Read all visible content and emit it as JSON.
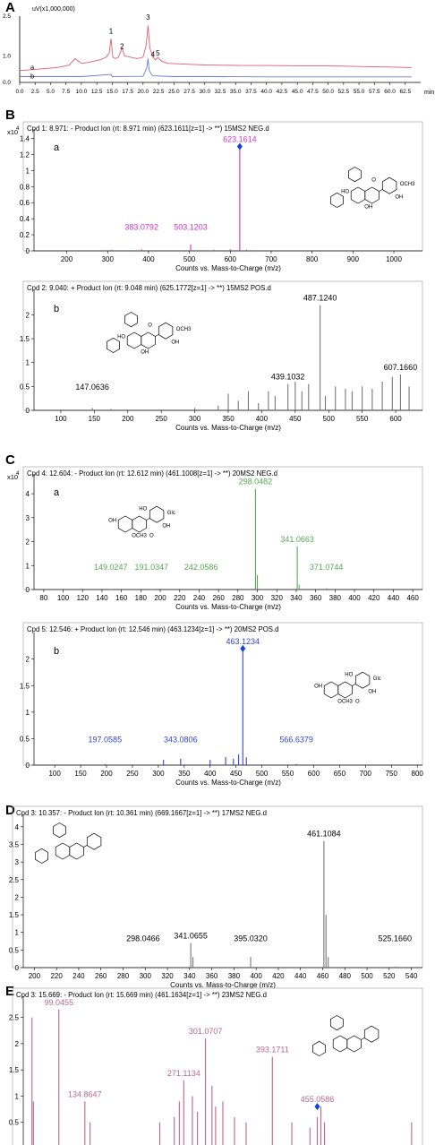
{
  "panel_letters": [
    "A",
    "B",
    "C",
    "D",
    "E"
  ],
  "chart_data": [
    {
      "id": "A",
      "type": "line",
      "ylabel": "uV(x1,000,000)",
      "xlabel": "min",
      "xlim": [
        0,
        65
      ],
      "ylim": [
        0,
        2.5
      ],
      "xticks": [
        0,
        2.5,
        5,
        7.5,
        10,
        12.5,
        15,
        17.5,
        20,
        22.5,
        25,
        27.5,
        30,
        32.5,
        35,
        37.5,
        40,
        42.5,
        45,
        47.5,
        50,
        52.5,
        55,
        57.5,
        60,
        62.5
      ],
      "xtick_labels": [
        "0.0",
        "2.5",
        "5.0",
        "7.5",
        "10.0",
        "12.5",
        "15.0",
        "17.5",
        "20.0",
        "22.5",
        "25.0",
        "27.5",
        "30.0",
        "32.5",
        "35.0",
        "37.5",
        "40.0",
        "42.5",
        "45.0",
        "47.5",
        "50.0",
        "52.5",
        "55.0",
        "57.5",
        "60.0",
        "62.5"
      ],
      "yticks": [
        0.0,
        1.0,
        2.5
      ],
      "ytick_labels": [
        "0.0",
        "1.0",
        "2.5"
      ],
      "trace_labels": [
        "a",
        "b"
      ],
      "peak_labels": [
        {
          "label": "1",
          "x": 14.8,
          "y": 1.78
        },
        {
          "label": "2",
          "x": 16.6,
          "y": 1.2
        },
        {
          "label": "3",
          "x": 20.8,
          "y": 2.3
        },
        {
          "label": "4",
          "x": 21.6,
          "y": 0.9
        },
        {
          "label": "5",
          "x": 22.4,
          "y": 0.95
        }
      ],
      "series": [
        {
          "color": "#e06070",
          "x": [
            0,
            2,
            4,
            6,
            8,
            9,
            10,
            11,
            12,
            13,
            14,
            14.5,
            14.8,
            15.1,
            15.5,
            16,
            16.6,
            17,
            18,
            19,
            20,
            20.5,
            20.8,
            21.1,
            21.6,
            22,
            22.4,
            23,
            24,
            26,
            28,
            30,
            33,
            36,
            40,
            45,
            50,
            55,
            60,
            63.5
          ],
          "y": [
            0.45,
            0.48,
            0.52,
            0.56,
            0.65,
            0.9,
            0.72,
            0.75,
            0.8,
            0.85,
            0.95,
            1.1,
            1.65,
            0.95,
            0.9,
            0.95,
            1.3,
            1.0,
            0.95,
            0.9,
            0.95,
            1.4,
            2.15,
            1.3,
            0.95,
            0.85,
            0.95,
            0.8,
            0.72,
            0.7,
            0.68,
            0.66,
            0.65,
            0.64,
            0.64,
            0.63,
            0.62,
            0.6,
            0.58,
            0.56
          ]
        },
        {
          "color": "#6a7ad6",
          "x": [
            0,
            5,
            10,
            14.8,
            15,
            20,
            20.6,
            20.8,
            21,
            21.5,
            25,
            30,
            40,
            50,
            60,
            63.5
          ],
          "y": [
            0.22,
            0.22,
            0.22,
            0.3,
            0.22,
            0.23,
            0.55,
            0.9,
            0.45,
            0.25,
            0.22,
            0.22,
            0.21,
            0.21,
            0.21,
            0.21
          ]
        }
      ]
    },
    {
      "id": "B-a",
      "type": "bar",
      "title": "Cpd 1: 8.971: - Product Ion (rt: 8.971 min) (623.1611[z=1] -> **) 15MS2 NEG.d",
      "multiplier": "x10",
      "exponent": "4",
      "label": "a",
      "xlabel": "Counts vs. Mass-to-Charge (m/z)",
      "xlim": [
        120,
        1070
      ],
      "ylim": [
        0,
        1.45
      ],
      "xticks": [
        200,
        300,
        400,
        500,
        600,
        700,
        800,
        900,
        1000
      ],
      "yticks": [
        0,
        0.2,
        0.4,
        0.6,
        0.8,
        1,
        1.2,
        1.4
      ],
      "ytick_labels": [
        "0",
        "0.2",
        "0.4",
        "0.6",
        "0.8",
        "1",
        "1.2",
        "1.4"
      ],
      "bar_color": "#cc33cc",
      "marker": {
        "x": 623.1614,
        "y": 1.3
      },
      "x": [
        383.0792,
        503.1203,
        623.1614,
        310,
        560,
        600,
        640
      ],
      "y": [
        0.02,
        0.08,
        1.3,
        0.015,
        0.015,
        0.02,
        0.015
      ],
      "peak_labels": [
        {
          "text": "623.1614",
          "x": 623.1614,
          "y": 1.3
        },
        {
          "text": "383.0792",
          "x": 383.0792,
          "y": 0.02
        },
        {
          "text": "503.1203",
          "x": 503.1203,
          "y": 0.08
        }
      ],
      "structure_labels": [
        "OCH3",
        "OH",
        "OH",
        "O",
        "HO"
      ]
    },
    {
      "id": "B-b",
      "type": "bar",
      "title": "Cpd 2: 9.040: + Product Ion (rt: 9.048 min) (625.1772[z=1] -> **) 15MS2 POS.d",
      "label": "b",
      "xlabel": "Counts vs. Mass-to-Charge (m/z)",
      "xlim": [
        60,
        640
      ],
      "ylim": [
        0,
        2.4
      ],
      "xticks": [
        100,
        150,
        200,
        250,
        300,
        350,
        400,
        450,
        500,
        550,
        600
      ],
      "yticks": [
        0,
        0.5,
        1,
        1.5,
        2
      ],
      "ytick_labels": [
        "0",
        "0.5",
        "1",
        "1.5",
        "2"
      ],
      "bar_color": "#777777",
      "x": [
        147.0636,
        175,
        300,
        335,
        350,
        365,
        380,
        395,
        410,
        420,
        439.1032,
        450,
        460,
        470,
        487.124,
        495,
        510,
        525,
        535,
        550,
        565,
        580,
        595,
        607.166,
        620
      ],
      "y": [
        0.05,
        0.03,
        0.05,
        0.1,
        0.35,
        0.2,
        0.4,
        0.15,
        0.4,
        0.3,
        0.55,
        0.6,
        0.4,
        0.55,
        2.2,
        0.3,
        0.5,
        0.45,
        0.4,
        0.5,
        0.45,
        0.6,
        0.7,
        0.75,
        0.5
      ],
      "peak_labels": [
        {
          "text": "487.1240",
          "x": 487.124,
          "y": 2.2
        },
        {
          "text": "439.1032",
          "x": 439.1032,
          "y": 0.55
        },
        {
          "text": "607.1660",
          "x": 607.166,
          "y": 0.75
        },
        {
          "text": "147.0636",
          "x": 147.0636,
          "y": 0.05
        }
      ],
      "structure_labels": [
        "OCH3",
        "OH",
        "OH",
        "O",
        "HO"
      ]
    },
    {
      "id": "C-a",
      "type": "bar",
      "title": "Cpd 4: 12.604: - Product Ion (rt: 12.612 min) (461.1008[z=1] -> **) 20MS2 NEG.d",
      "multiplier": "x10",
      "exponent": "4",
      "label": "a",
      "xlabel": "Counts vs. Mass-to-Charge (m/z)",
      "xlim": [
        70,
        470
      ],
      "ylim": [
        0,
        4.6
      ],
      "xticks": [
        80,
        100,
        120,
        140,
        160,
        180,
        200,
        220,
        240,
        260,
        280,
        300,
        320,
        340,
        360,
        380,
        400,
        420,
        440,
        460
      ],
      "yticks": [
        0,
        1,
        2,
        3,
        4
      ],
      "ytick_labels": [
        "0",
        "1",
        "2",
        "3",
        "4"
      ],
      "bar_color": "#55aa55",
      "x": [
        149.0247,
        191.0347,
        242.0586,
        298.0482,
        300,
        341.0663,
        343,
        371.0744
      ],
      "y": [
        0.02,
        0.02,
        0.02,
        4.2,
        0.6,
        1.8,
        0.2,
        0.05
      ],
      "peak_labels": [
        {
          "text": "298.0482",
          "x": 298.0482,
          "y": 4.2
        },
        {
          "text": "341.0663",
          "x": 341.0663,
          "y": 1.8
        },
        {
          "text": "149.0247",
          "x": 149.0247,
          "y": 0.02
        },
        {
          "text": "191.0347",
          "x": 191.0347,
          "y": 0.02
        },
        {
          "text": "242.0586",
          "x": 242.0586,
          "y": 0.02
        },
        {
          "text": "371.0744",
          "x": 371.0744,
          "y": 0.05
        }
      ],
      "structure_labels": [
        "Glc",
        "OH",
        "OCH3",
        "HO",
        "OH",
        "O"
      ]
    },
    {
      "id": "C-b",
      "type": "bar",
      "title": "Cpd 5: 12.546: + Product Ion (rt: 12.546 min) (463.1234[z=1] -> **) 20MS2 POS.d",
      "label": "b",
      "xlabel": "Counts vs. Mass-to-Charge (m/z)",
      "xlim": [
        60,
        810
      ],
      "ylim": [
        0,
        2.4
      ],
      "xticks": [
        100,
        150,
        200,
        250,
        300,
        350,
        400,
        450,
        500,
        550,
        600,
        650,
        700,
        750,
        800
      ],
      "yticks": [
        0,
        0.5,
        1,
        1.5,
        2
      ],
      "ytick_labels": [
        "0",
        "0.5",
        "1",
        "1.5",
        "2"
      ],
      "bar_color": "#3344cc",
      "marker": {
        "x": 463.1234,
        "y": 2.2
      },
      "x": [
        197.0585,
        310,
        343.0806,
        400,
        430,
        445,
        455,
        463.1234,
        470,
        566.6379
      ],
      "y": [
        0.02,
        0.1,
        0.12,
        0.1,
        0.15,
        0.12,
        0.2,
        2.2,
        0.15,
        0.02
      ],
      "peak_labels": [
        {
          "text": "463.1234",
          "x": 463.1234,
          "y": 2.2
        },
        {
          "text": "197.0585",
          "x": 197.0585,
          "y": 0.02
        },
        {
          "text": "343.0806",
          "x": 343.0806,
          "y": 0.12
        },
        {
          "text": "566.6379",
          "x": 566.6379,
          "y": 0.02
        }
      ],
      "structure_labels": [
        "Glc",
        "OH",
        "OCH3",
        "HO",
        "OH",
        "O"
      ]
    },
    {
      "id": "D",
      "type": "bar",
      "title": "Cpd 3: 10.357: - Product Ion (rt: 10.361 min) (669.1667[z=1] -> **) 17MS2 NEG.d",
      "xlabel": "Counts vs. Mass-to-Charge (m/z)",
      "xlim": [
        190,
        550
      ],
      "ylim": [
        0,
        4.2
      ],
      "xticks": [
        200,
        220,
        240,
        260,
        280,
        300,
        320,
        340,
        360,
        380,
        400,
        420,
        440,
        460,
        480,
        500,
        520,
        540
      ],
      "yticks": [
        0,
        0.5,
        1,
        1.5,
        2,
        2.5,
        3,
        3.5,
        4
      ],
      "ytick_labels": [
        "0",
        "0.5",
        "1",
        "1.5",
        "2",
        "2.5",
        "3",
        "3.5",
        "4"
      ],
      "bar_color": "#777777",
      "x": [
        298.0466,
        341.0655,
        343,
        395.032,
        461.1084,
        463,
        465,
        525.166
      ],
      "y": [
        0.03,
        0.7,
        0.3,
        0.3,
        3.6,
        1.5,
        0.3,
        0.03
      ],
      "peak_labels": [
        {
          "text": "461.1084",
          "x": 461.1084,
          "y": 3.6
        },
        {
          "text": "341.0655",
          "x": 341.0655,
          "y": 0.7
        },
        {
          "text": "298.0466",
          "x": 298.0466,
          "y": 0.03
        },
        {
          "text": "395.0320",
          "x": 395.032,
          "y": 0.3
        },
        {
          "text": "525.1660",
          "x": 525.166,
          "y": 0.03
        }
      ]
    },
    {
      "id": "E",
      "type": "bar",
      "title": "Cpd 3: 15.669: - Product Ion (rt: 15.669 min) (461.1634[z=1] -> **) 23MS2 NEG.d",
      "xlabel": "Counts vs. Mass-to-Charge (m/z)",
      "xlim": [
        50,
        600
      ],
      "ylim": [
        0,
        2.8
      ],
      "xticks": [
        100,
        150,
        200,
        250,
        300,
        350,
        400,
        450,
        500,
        550
      ],
      "yticks": [
        0.5,
        1,
        1.5,
        2,
        2.5
      ],
      "ytick_labels": [
        "0.5",
        "1",
        "1.5",
        "2",
        "2.5"
      ],
      "bar_color": "#bb6688",
      "marker": {
        "x": 455.0586,
        "y": 0.8
      },
      "x": [
        62,
        64,
        99.0455,
        134.8647,
        142,
        238,
        258,
        265,
        271.1134,
        283,
        290,
        301.0707,
        310,
        315,
        325,
        341,
        357,
        393.1711,
        420,
        445,
        455.0586,
        460,
        465,
        585
      ],
      "y": [
        2.5,
        0.9,
        2.65,
        0.9,
        0.5,
        0.5,
        0.6,
        0.9,
        1.3,
        1.0,
        0.7,
        2.1,
        1.2,
        0.8,
        0.9,
        0.6,
        0.5,
        1.75,
        0.5,
        0.4,
        0.6,
        0.8,
        0.5,
        0.5
      ],
      "peak_labels": [
        {
          "text": "99.0455",
          "x": 99.0455,
          "y": 2.65
        },
        {
          "text": "134.8647",
          "x": 134.8647,
          "y": 0.9
        },
        {
          "text": "301.0707",
          "x": 301.0707,
          "y": 2.1
        },
        {
          "text": "271.1134",
          "x": 271.1134,
          "y": 1.3
        },
        {
          "text": "393.1711",
          "x": 393.1711,
          "y": 1.75
        },
        {
          "text": "455.0586",
          "x": 455.0586,
          "y": 0.8
        }
      ]
    }
  ]
}
